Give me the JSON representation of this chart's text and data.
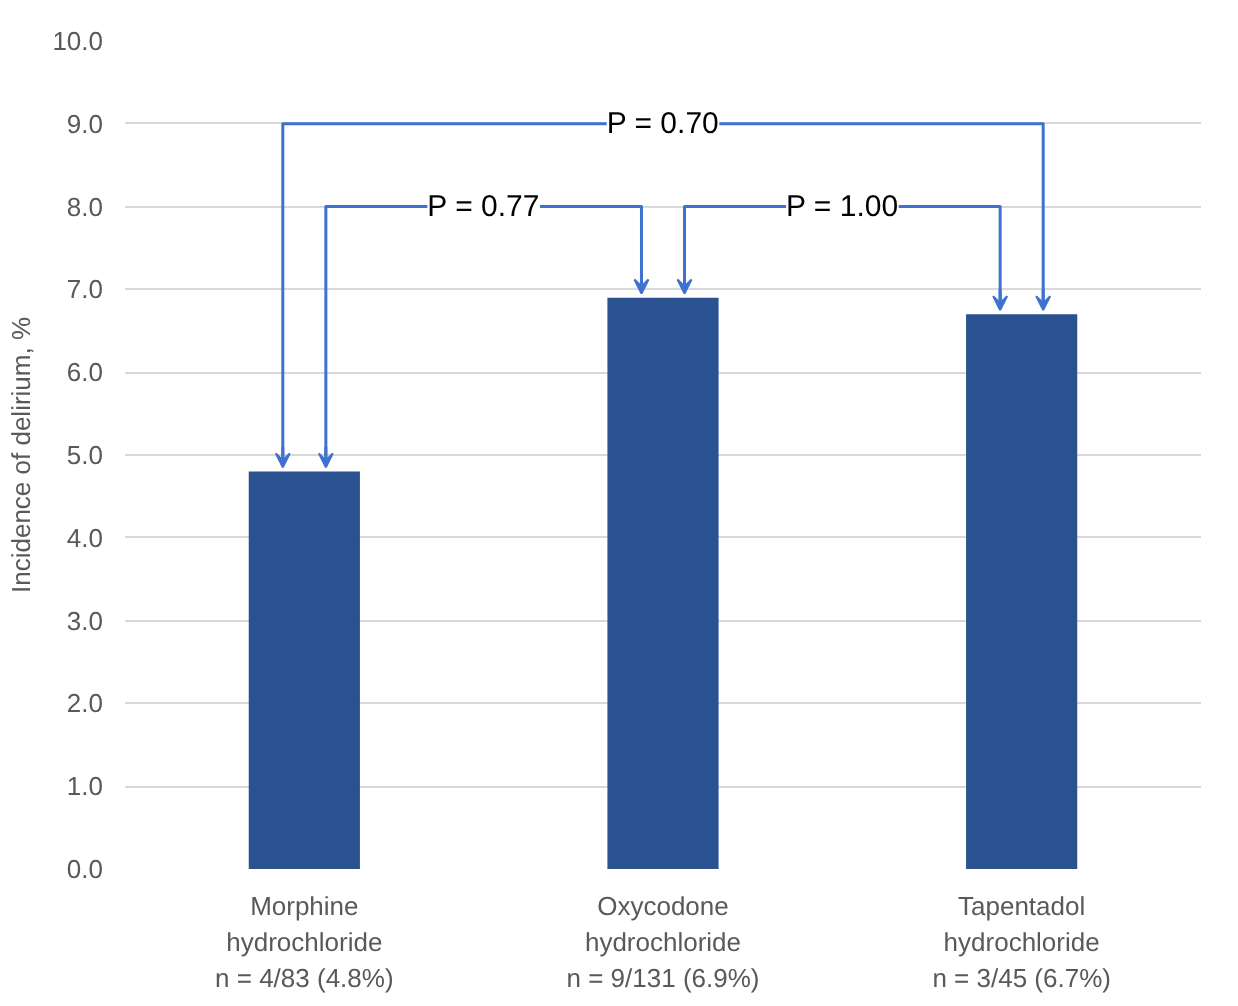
{
  "chart_data": {
    "type": "bar",
    "categories": [
      "Morphine\nhydrochloride\nn = 4/83 (4.8%)",
      "Oxycodone\nhydrochloride\nn = 9/131 (6.9%)",
      "Tapentadol\nhydrochloride\nn = 3/45 (6.7%)"
    ],
    "values": [
      4.8,
      6.9,
      6.7
    ],
    "color": "#2a5190",
    "ylabel": "Incidence of delirium, %",
    "ylim": [
      0,
      10
    ],
    "yticks": [
      {
        "value": 0,
        "label": "0.0"
      },
      {
        "value": 1,
        "label": "1.0"
      },
      {
        "value": 2,
        "label": "2.0"
      },
      {
        "value": 3,
        "label": "3.0"
      },
      {
        "value": 4,
        "label": "4.0"
      },
      {
        "value": 5,
        "label": "5.0"
      },
      {
        "value": 6,
        "label": "6.0"
      },
      {
        "value": 7,
        "label": "7.0"
      },
      {
        "value": 8,
        "label": "8.0"
      },
      {
        "value": 9,
        "label": "9.0"
      },
      {
        "value": 10,
        "label": "10.0"
      }
    ],
    "grid": "y",
    "annotations": [
      "P = 0.70",
      "P = 0.77",
      "P = 1.00"
    ]
  }
}
